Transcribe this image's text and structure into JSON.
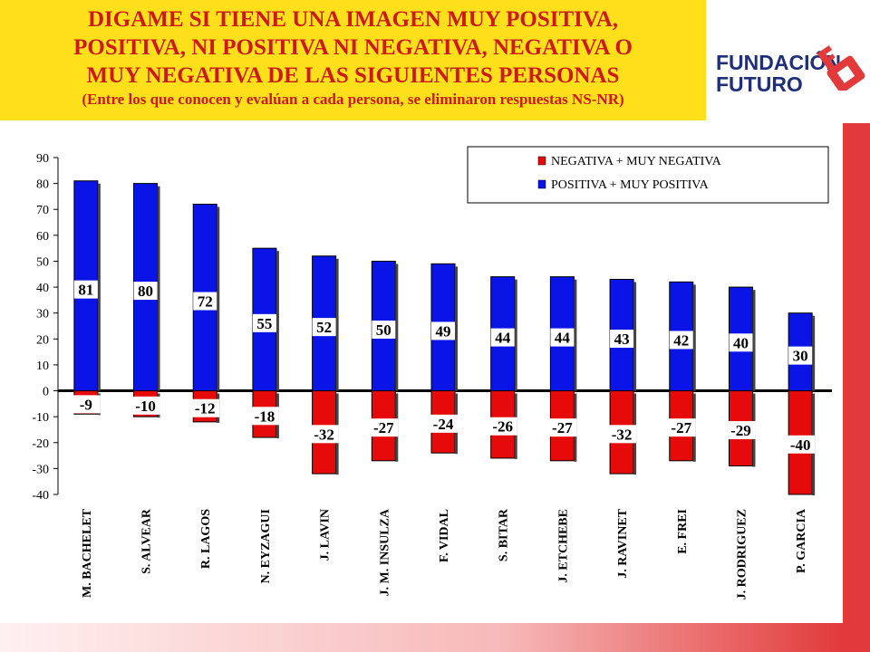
{
  "header": {
    "title_lines": [
      "DIGAME SI TIENE UNA IMAGEN MUY POSITIVA,",
      "POSITIVA, NI POSITIVA NI NEGATIVA, NEGATIVA O",
      "MUY NEGATIVA DE LAS SIGUIENTES PERSONAS"
    ],
    "subtitle": "(Entre los que conocen y evalúan a cada persona, se eliminaron respuestas NS-NR)"
  },
  "logo": {
    "line1": "FUNDACIÓN",
    "line2": "FUTURO",
    "icon": "key-icon"
  },
  "colors": {
    "title_bg": "#ffe01b",
    "title_text": "#cc1a1a",
    "positive": "#0a14e6",
    "negative": "#e60a0a",
    "accent": "#e23a3a"
  },
  "chart_data": {
    "type": "bar",
    "categories": [
      "M. BACHELET",
      "S. ALVEAR",
      "R. LAGOS",
      "N. EYZAGUI",
      "J. LAVIN",
      "J. M. INSULZA",
      "F. VIDAL",
      "S. BITAR",
      "J. ETCHEBE",
      "J. RAVINET",
      "E. FREI",
      "J. RODRIGUEZ",
      "P. GARCIA"
    ],
    "series": [
      {
        "name": "NEGATIVA + MUY NEGATIVA",
        "values": [
          -9,
          -10,
          -12,
          -18,
          -32,
          -27,
          -24,
          -26,
          -27,
          -32,
          -27,
          -29,
          -40
        ]
      },
      {
        "name": "POSITIVA + MUY POSITIVA",
        "values": [
          81,
          80,
          72,
          55,
          52,
          50,
          49,
          44,
          44,
          43,
          42,
          40,
          30
        ]
      }
    ],
    "yticks": [
      "90",
      "80",
      "70",
      "60",
      "50",
      "40",
      "30",
      "20",
      "10",
      "0",
      "-10",
      "-20",
      "-30",
      "-40"
    ],
    "ylim": [
      -40,
      90
    ],
    "legend_position": "top-right",
    "grid": false
  }
}
